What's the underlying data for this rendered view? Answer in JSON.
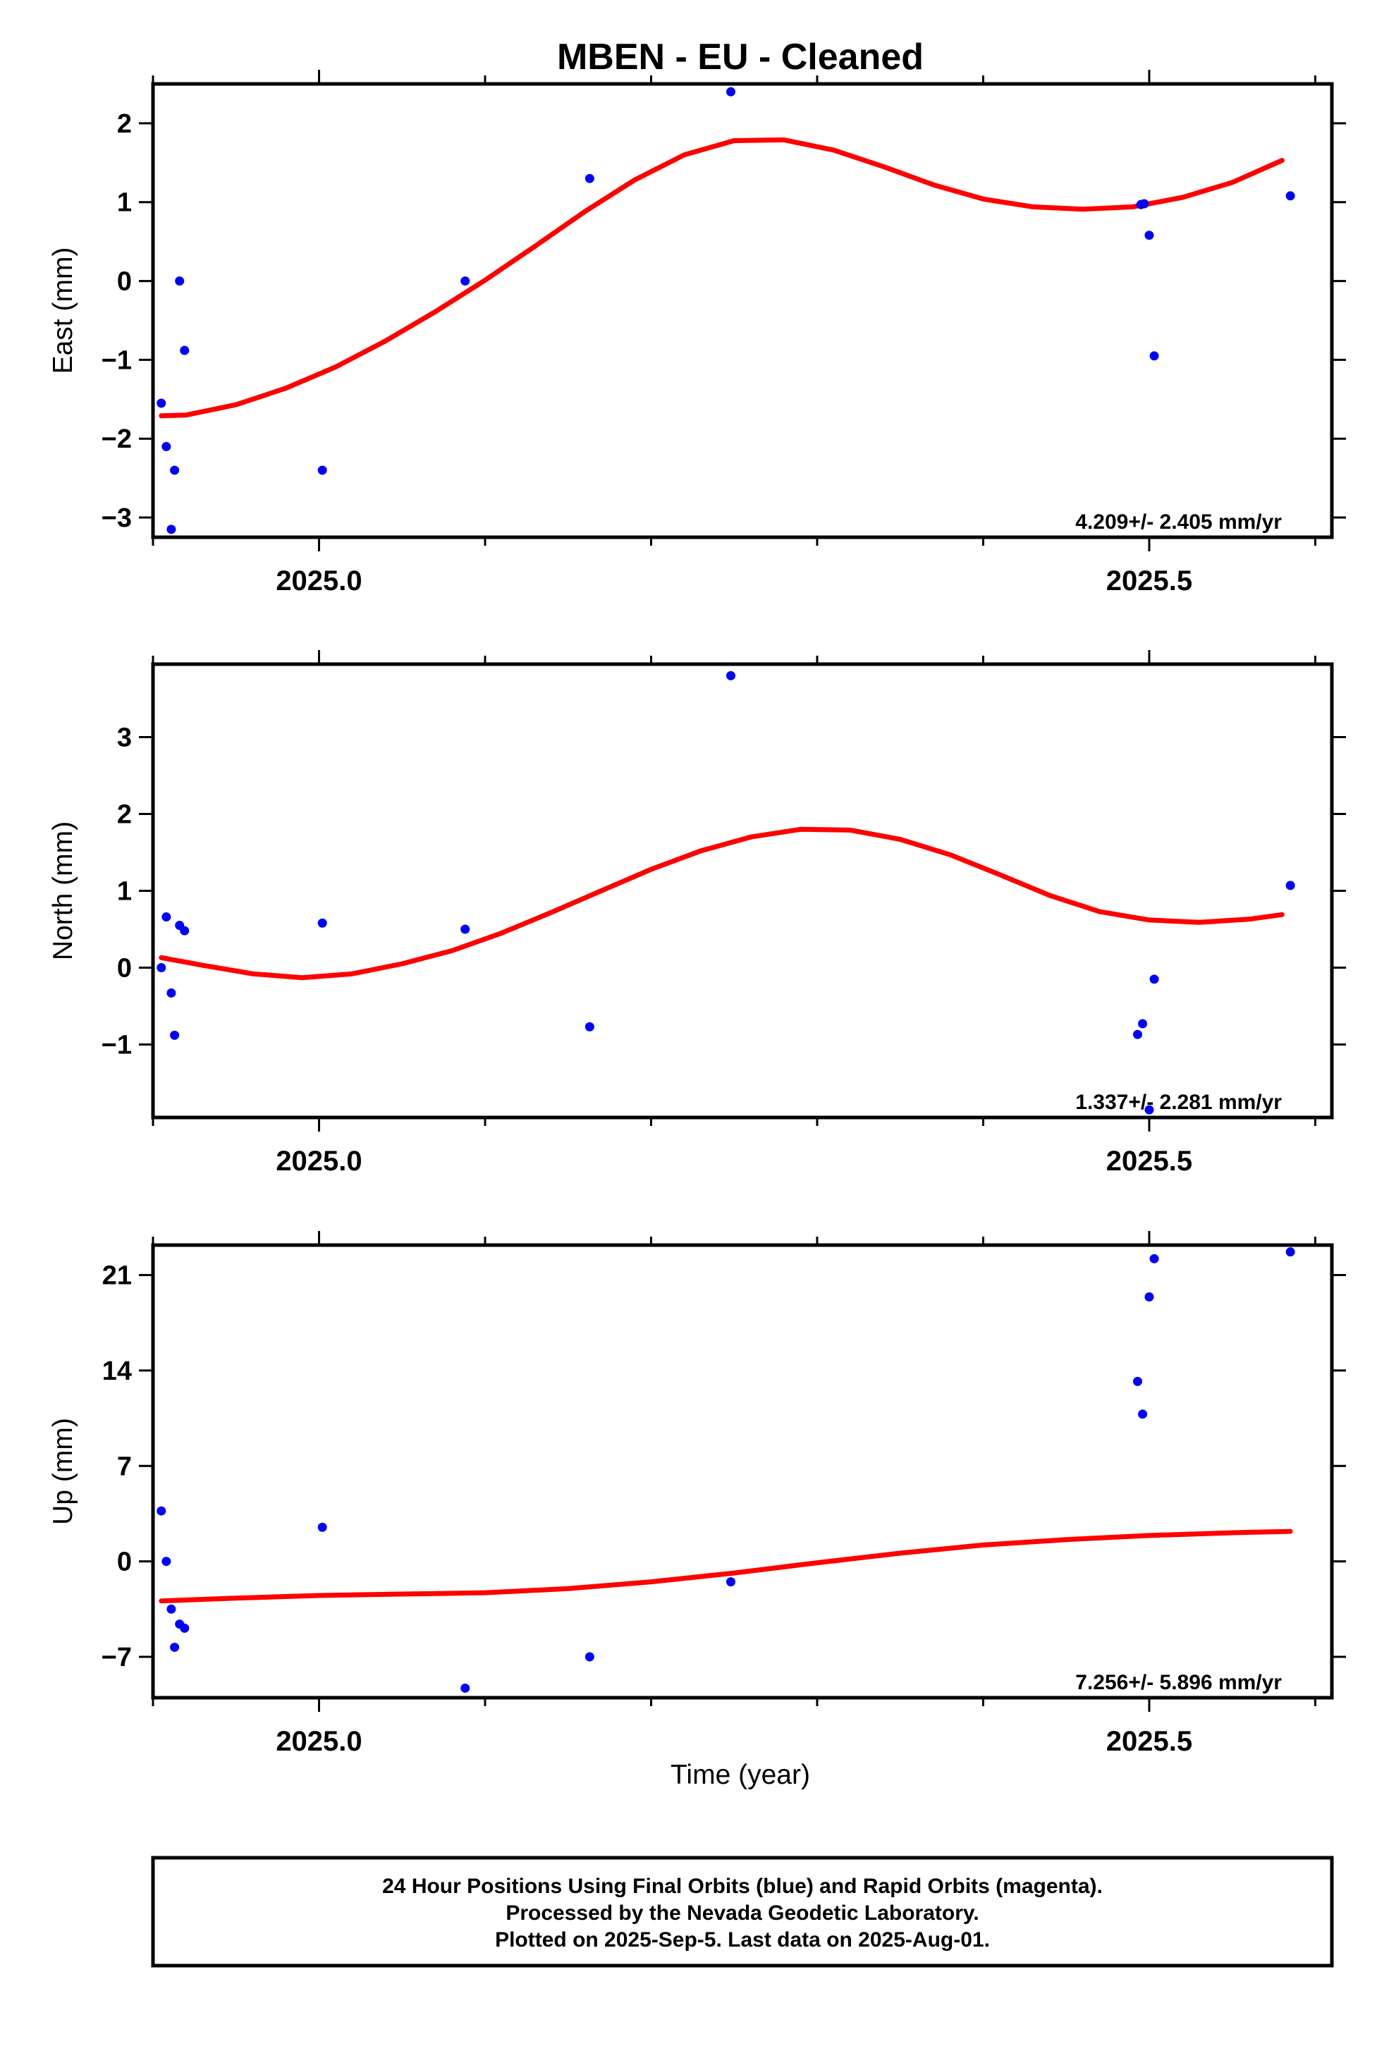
{
  "title": "MBEN  - EU - Cleaned",
  "colors": {
    "points": "#0000ff",
    "fit": "#ff0000",
    "axes": "#000000"
  },
  "chart_data": [
    {
      "type": "scatter",
      "ylabel": "East (mm)",
      "xlim": [
        2024.9,
        2025.61
      ],
      "ylim": [
        -3.25,
        2.5
      ],
      "yticks": [
        -3,
        -2,
        -1,
        0,
        1,
        2
      ],
      "yticklabels": [
        "−3",
        "−2",
        "−1",
        "0",
        "1",
        "2"
      ],
      "xticks": [
        2025.0,
        2025.5
      ],
      "xticklabels": [
        "2025.0",
        "2025.5"
      ],
      "rate_text": "4.209+/- 2.405 mm/yr",
      "points": [
        [
          2024.905,
          -1.55
        ],
        [
          2024.908,
          -2.1
        ],
        [
          2024.911,
          -3.15
        ],
        [
          2024.913,
          -2.4
        ],
        [
          2024.916,
          0.0
        ],
        [
          2024.919,
          -0.88
        ],
        [
          2025.002,
          -2.4
        ],
        [
          2025.088,
          0.0
        ],
        [
          2025.163,
          1.3
        ],
        [
          2025.248,
          2.4
        ],
        [
          2025.495,
          0.97
        ],
        [
          2025.497,
          0.98
        ],
        [
          2025.5,
          0.58
        ],
        [
          2025.503,
          -0.95
        ],
        [
          2025.585,
          1.08
        ]
      ],
      "fit": [
        [
          2024.905,
          -1.71
        ],
        [
          2024.92,
          -1.7
        ],
        [
          2024.95,
          -1.57
        ],
        [
          2024.98,
          -1.36
        ],
        [
          2025.01,
          -1.09
        ],
        [
          2025.04,
          -0.76
        ],
        [
          2025.07,
          -0.39
        ],
        [
          2025.1,
          0.01
        ],
        [
          2025.13,
          0.44
        ],
        [
          2025.16,
          0.88
        ],
        [
          2025.19,
          1.28
        ],
        [
          2025.22,
          1.6
        ],
        [
          2025.25,
          1.78
        ],
        [
          2025.28,
          1.79
        ],
        [
          2025.31,
          1.66
        ],
        [
          2025.34,
          1.45
        ],
        [
          2025.37,
          1.22
        ],
        [
          2025.4,
          1.04
        ],
        [
          2025.43,
          0.94
        ],
        [
          2025.46,
          0.91
        ],
        [
          2025.49,
          0.94
        ],
        [
          2025.52,
          1.06
        ],
        [
          2025.55,
          1.25
        ],
        [
          2025.58,
          1.53
        ]
      ]
    },
    {
      "type": "scatter",
      "ylabel": "North (mm)",
      "xlim": [
        2024.9,
        2025.61
      ],
      "ylim": [
        -1.95,
        3.95
      ],
      "yticks": [
        -1,
        0,
        1,
        2,
        3
      ],
      "yticklabels": [
        "−1",
        "0",
        "1",
        "2",
        "3"
      ],
      "xticks": [
        2025.0,
        2025.5
      ],
      "xticklabels": [
        "2025.0",
        "2025.5"
      ],
      "rate_text": "1.337+/- 2.281 mm/yr",
      "points": [
        [
          2024.905,
          0.0
        ],
        [
          2024.908,
          0.66
        ],
        [
          2024.911,
          -0.33
        ],
        [
          2024.913,
          -0.88
        ],
        [
          2024.916,
          0.55
        ],
        [
          2024.919,
          0.48
        ],
        [
          2025.002,
          0.58
        ],
        [
          2025.088,
          0.5
        ],
        [
          2025.163,
          -0.77
        ],
        [
          2025.248,
          3.8
        ],
        [
          2025.493,
          -0.87
        ],
        [
          2025.496,
          -0.73
        ],
        [
          2025.5,
          -1.85
        ],
        [
          2025.503,
          -0.15
        ],
        [
          2025.585,
          1.07
        ]
      ],
      "fit": [
        [
          2024.905,
          0.13
        ],
        [
          2024.93,
          0.03
        ],
        [
          2024.96,
          -0.08
        ],
        [
          2024.99,
          -0.13
        ],
        [
          2025.02,
          -0.08
        ],
        [
          2025.05,
          0.05
        ],
        [
          2025.08,
          0.22
        ],
        [
          2025.11,
          0.45
        ],
        [
          2025.14,
          0.72
        ],
        [
          2025.17,
          1.0
        ],
        [
          2025.2,
          1.28
        ],
        [
          2025.23,
          1.52
        ],
        [
          2025.26,
          1.7
        ],
        [
          2025.29,
          1.8
        ],
        [
          2025.32,
          1.79
        ],
        [
          2025.35,
          1.67
        ],
        [
          2025.38,
          1.47
        ],
        [
          2025.41,
          1.21
        ],
        [
          2025.44,
          0.94
        ],
        [
          2025.47,
          0.73
        ],
        [
          2025.5,
          0.62
        ],
        [
          2025.53,
          0.59
        ],
        [
          2025.56,
          0.63
        ],
        [
          2025.58,
          0.69
        ]
      ]
    },
    {
      "type": "scatter",
      "ylabel": "Up (mm)",
      "xlabel": "Time (year)",
      "xlim": [
        2024.9,
        2025.61
      ],
      "ylim": [
        -10,
        23.2
      ],
      "yticks": [
        -7,
        0,
        7,
        14,
        21
      ],
      "yticklabels": [
        "−7",
        "0",
        "7",
        "14",
        "21"
      ],
      "xticks": [
        2025.0,
        2025.5
      ],
      "xticklabels": [
        "2025.0",
        "2025.5"
      ],
      "rate_text": "7.256+/- 5.896 mm/yr",
      "points": [
        [
          2024.905,
          3.7
        ],
        [
          2024.908,
          0.0
        ],
        [
          2024.911,
          -3.5
        ],
        [
          2024.913,
          -6.3
        ],
        [
          2024.916,
          -4.6
        ],
        [
          2024.919,
          -4.9
        ],
        [
          2025.002,
          2.5
        ],
        [
          2025.088,
          -9.3
        ],
        [
          2025.163,
          -7.0
        ],
        [
          2025.248,
          -1.5
        ],
        [
          2025.493,
          13.2
        ],
        [
          2025.496,
          10.8
        ],
        [
          2025.5,
          19.4
        ],
        [
          2025.503,
          22.2
        ],
        [
          2025.585,
          22.7
        ]
      ],
      "fit": [
        [
          2024.905,
          -2.9
        ],
        [
          2024.95,
          -2.7
        ],
        [
          2025.0,
          -2.5
        ],
        [
          2025.05,
          -2.4
        ],
        [
          2025.1,
          -2.3
        ],
        [
          2025.15,
          -2.0
        ],
        [
          2025.2,
          -1.5
        ],
        [
          2025.25,
          -0.85
        ],
        [
          2025.3,
          -0.1
        ],
        [
          2025.35,
          0.6
        ],
        [
          2025.4,
          1.2
        ],
        [
          2025.45,
          1.6
        ],
        [
          2025.5,
          1.9
        ],
        [
          2025.55,
          2.1
        ],
        [
          2025.585,
          2.2
        ]
      ]
    }
  ],
  "footer": {
    "line1": "24 Hour Positions Using Final Orbits (blue) and Rapid Orbits (magenta).",
    "line2": "Processed by the Nevada Geodetic Laboratory.",
    "line3": "Plotted on 2025-Sep-5. Last data on 2025-Aug-01."
  }
}
